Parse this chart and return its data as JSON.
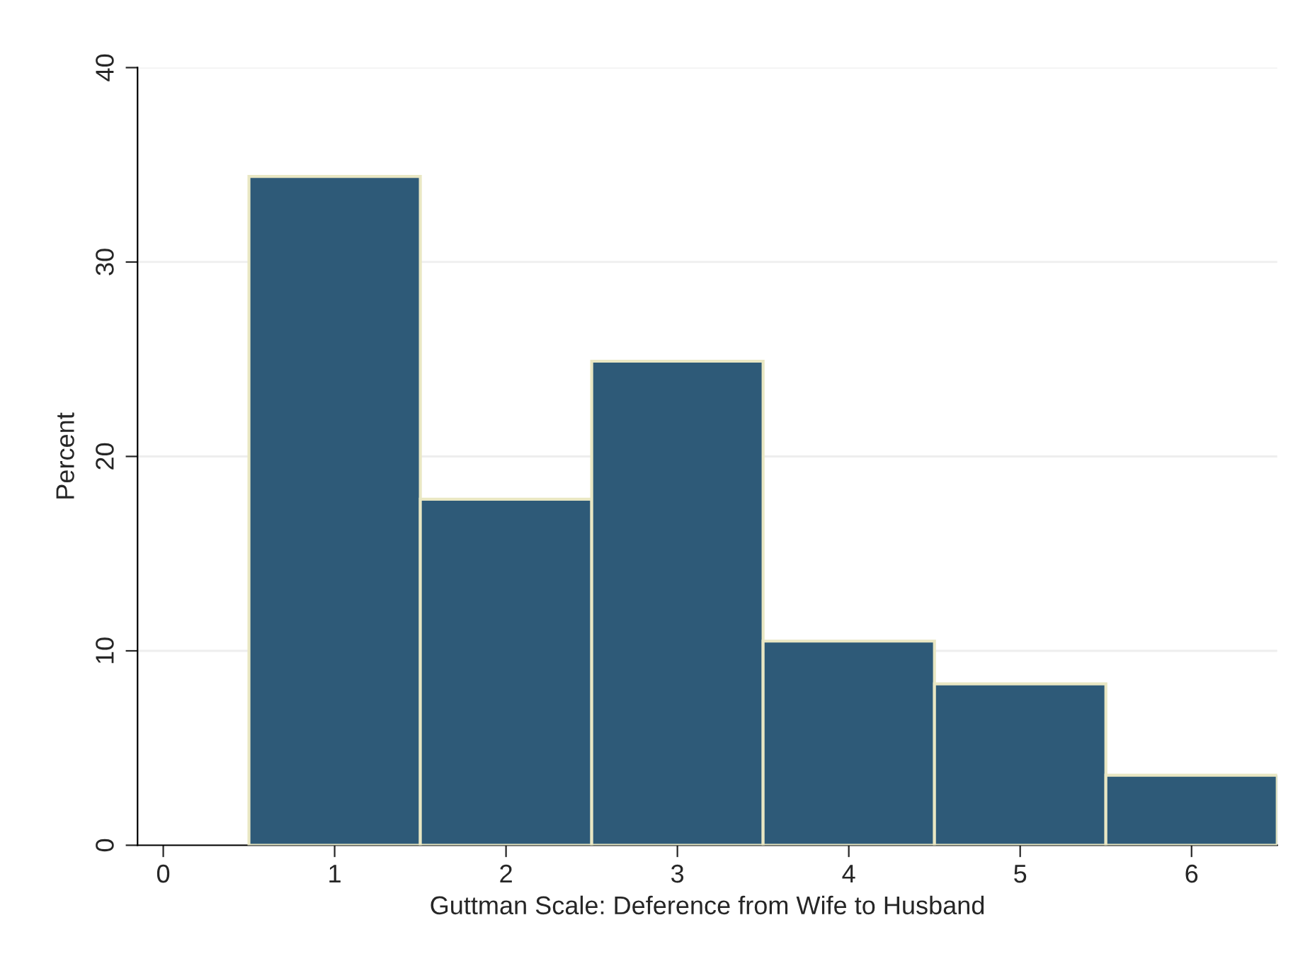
{
  "chart_data": {
    "type": "histogram",
    "xlabel": "Guttman Scale: Deference from Wife to Husband",
    "ylabel": "Percent",
    "bins": [
      0.5,
      1.5,
      2.5,
      3.5,
      4.5,
      5.5,
      6.5
    ],
    "values": [
      34.4,
      17.8,
      24.9,
      10.5,
      8.3,
      3.6
    ],
    "color": "#2e5a78",
    "xlim": [
      -0.15,
      6.5
    ],
    "xticks": [
      0,
      1,
      2,
      3,
      4,
      5,
      6
    ],
    "ylim": [
      0,
      40
    ],
    "yticks": [
      0,
      10,
      20,
      30,
      40
    ],
    "grid": "y"
  }
}
